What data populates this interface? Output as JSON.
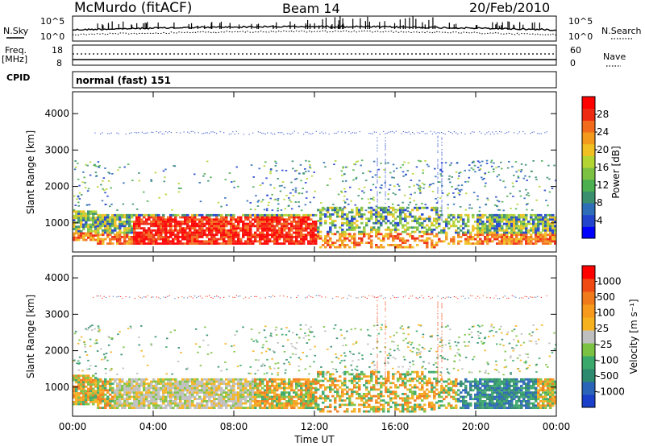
{
  "header": {
    "station": "McMurdo (fitACF)",
    "beam": "Beam 14",
    "date": "20/Feb/2010"
  },
  "left_labels": {
    "nsky": "N.Sky",
    "freq_line1": "Freq.",
    "freq_line2": "[MHz]",
    "cpid": "CPID"
  },
  "right_labels": {
    "nsearch": "N.Search",
    "nave": "Nave"
  },
  "cpid_text": "normal (fast) 151",
  "chart_data": [
    {
      "panel": "noise",
      "type": "line",
      "y_ticks_left": [
        "10^5",
        "10^0"
      ],
      "y_ticks_right": [
        "10^5",
        "10^0"
      ],
      "series": [
        {
          "name": "N.Sky",
          "style": "solid"
        },
        {
          "name": "N.Search",
          "style": "dotted"
        }
      ]
    },
    {
      "panel": "frequency",
      "type": "line",
      "y_ticks_left": [
        "18",
        "8"
      ],
      "y_ticks_right": [
        "60",
        "0"
      ],
      "series": [
        {
          "name": "Freq. [MHz]",
          "style": "solid"
        },
        {
          "name": "Nave",
          "style": "dotted"
        }
      ]
    },
    {
      "panel": "power",
      "type": "heatmap",
      "ylabel": "Slant Range [km]",
      "y_ticks": [
        1000,
        2000,
        3000,
        4000
      ],
      "ylim": [
        200,
        4600
      ],
      "xlim": [
        "00:00",
        "24:00"
      ],
      "colorbar_label": "Power [dB]",
      "colorbar_ticks": [
        "28",
        "24",
        "20",
        "16",
        "12",
        "8",
        "4"
      ],
      "colorscale": [
        "#0000ff",
        "#2244cc",
        "#2e6eb8",
        "#3a8f6e",
        "#4caf50",
        "#7cc242",
        "#b4d432",
        "#f0c020",
        "#f39a1c",
        "#f26a1c",
        "#ee2a12",
        "#ff0000"
      ]
    },
    {
      "panel": "velocity",
      "type": "heatmap",
      "ylabel": "Slant Range [km]",
      "xlabel": "Time UT",
      "x_ticks": [
        "00:00",
        "04:00",
        "08:00",
        "12:00",
        "16:00",
        "20:00",
        "00:00"
      ],
      "y_ticks": [
        1000,
        2000,
        3000,
        4000
      ],
      "ylim": [
        200,
        4600
      ],
      "colorbar_label": "Velocity [m s⁻¹]",
      "colorbar_ticks": [
        "1000",
        "500",
        "100",
        "25",
        "-25",
        "-100",
        "-500",
        "-1000"
      ],
      "colorscale": [
        "#1a3fc8",
        "#2a64b8",
        "#2e8a6e",
        "#3aa86a",
        "#7cc242",
        "#bfbfbf",
        "#f5b21e",
        "#f59a1c",
        "#f07a1a",
        "#f04a14",
        "#ff0000"
      ]
    }
  ]
}
